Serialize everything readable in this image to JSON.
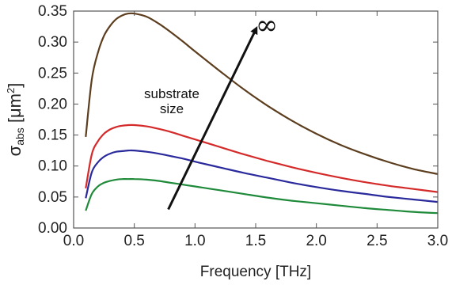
{
  "chart_data": {
    "type": "line",
    "xlabel": "Frequency [THz]",
    "ylabel": {
      "symbol": "σ",
      "subscript": "abs",
      "unit_open": " [",
      "unit_base": "μm",
      "unit_exp": "2",
      "unit_close": "]"
    },
    "xlim": [
      0.0,
      3.0
    ],
    "ylim": [
      0.0,
      0.35
    ],
    "xticks": [
      "0.0",
      "0.5",
      "1.0",
      "1.5",
      "2.0",
      "2.5",
      "3.0"
    ],
    "yticks": [
      "0.00",
      "0.05",
      "0.10",
      "0.15",
      "0.20",
      "0.25",
      "0.30",
      "0.35"
    ],
    "grid": false,
    "series": [
      {
        "color": "#5c3d1e",
        "x": [
          0.1,
          0.15,
          0.2,
          0.25,
          0.3,
          0.35,
          0.4,
          0.45,
          0.5,
          0.6,
          0.7,
          0.8,
          0.9,
          1.0,
          1.2,
          1.4,
          1.6,
          1.8,
          2.0,
          2.2,
          2.4,
          2.6,
          2.8,
          3.0
        ],
        "y": [
          0.147,
          0.24,
          0.283,
          0.31,
          0.326,
          0.337,
          0.343,
          0.346,
          0.346,
          0.341,
          0.33,
          0.316,
          0.301,
          0.285,
          0.254,
          0.224,
          0.197,
          0.173,
          0.152,
          0.134,
          0.119,
          0.106,
          0.095,
          0.087
        ]
      },
      {
        "color": "#d42a2a",
        "x": [
          0.1,
          0.15,
          0.2,
          0.25,
          0.3,
          0.35,
          0.4,
          0.45,
          0.5,
          0.6,
          0.7,
          0.8,
          0.9,
          1.0,
          1.2,
          1.4,
          1.6,
          1.8,
          2.0,
          2.2,
          2.4,
          2.6,
          2.8,
          3.0
        ],
        "y": [
          0.064,
          0.119,
          0.14,
          0.152,
          0.159,
          0.163,
          0.165,
          0.166,
          0.166,
          0.164,
          0.16,
          0.155,
          0.149,
          0.143,
          0.131,
          0.119,
          0.108,
          0.098,
          0.089,
          0.081,
          0.074,
          0.068,
          0.063,
          0.058
        ]
      },
      {
        "color": "#2a2a9c",
        "x": [
          0.1,
          0.15,
          0.2,
          0.25,
          0.3,
          0.35,
          0.4,
          0.45,
          0.5,
          0.6,
          0.7,
          0.8,
          0.9,
          1.0,
          1.2,
          1.4,
          1.6,
          1.8,
          2.0,
          2.2,
          2.4,
          2.6,
          2.8,
          3.0
        ],
        "y": [
          0.048,
          0.09,
          0.106,
          0.115,
          0.12,
          0.123,
          0.124,
          0.125,
          0.125,
          0.123,
          0.12,
          0.116,
          0.112,
          0.107,
          0.098,
          0.089,
          0.081,
          0.073,
          0.066,
          0.06,
          0.055,
          0.05,
          0.046,
          0.042
        ]
      },
      {
        "color": "#1e8a3a",
        "x": [
          0.1,
          0.15,
          0.2,
          0.25,
          0.3,
          0.35,
          0.4,
          0.45,
          0.5,
          0.6,
          0.7,
          0.8,
          0.9,
          1.0,
          1.2,
          1.4,
          1.6,
          1.8,
          2.0,
          2.2,
          2.4,
          2.6,
          2.8,
          3.0
        ],
        "y": [
          0.028,
          0.055,
          0.067,
          0.073,
          0.076,
          0.078,
          0.079,
          0.079,
          0.079,
          0.078,
          0.076,
          0.073,
          0.07,
          0.067,
          0.061,
          0.055,
          0.049,
          0.044,
          0.04,
          0.036,
          0.032,
          0.029,
          0.026,
          0.024
        ]
      }
    ],
    "annotations": {
      "label_line1": "substrate",
      "label_line2": "size",
      "arrow_end_label": "∞",
      "arrow_from": [
        0.78,
        0.03
      ],
      "arrow_to": [
        1.5,
        0.32
      ]
    }
  }
}
